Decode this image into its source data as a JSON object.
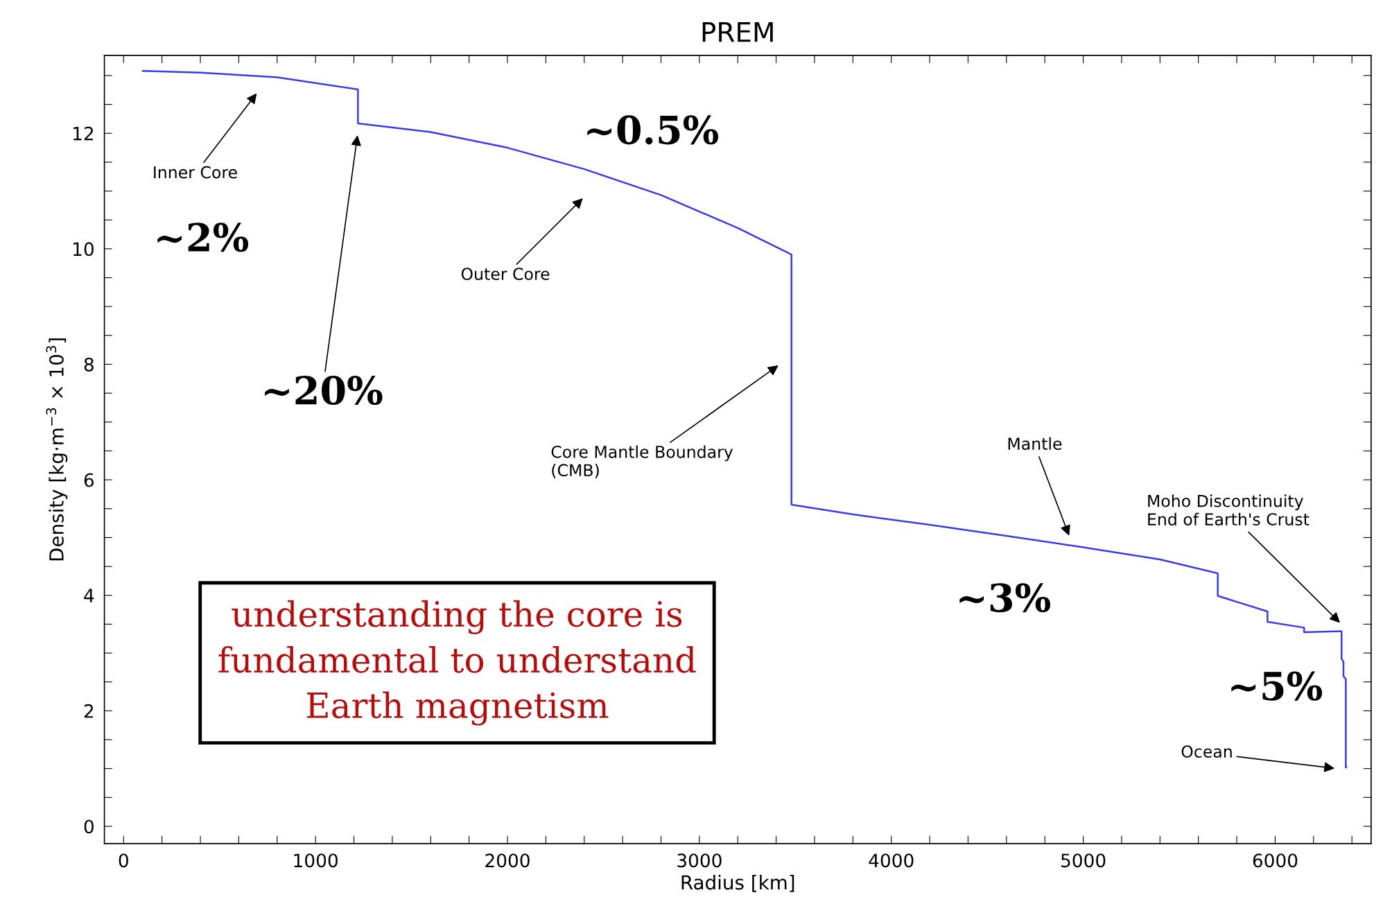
{
  "chart_data": {
    "type": "line",
    "title": "PREM",
    "xlabel": "Radius [km]",
    "ylabel": "Density [kg·m$^{−3}$ × 10$^{3}$]",
    "x": [
      100,
      400,
      800,
      1221,
      1221,
      1600,
      2000,
      2400,
      2800,
      3200,
      3480,
      3480,
      3800,
      4200,
      4600,
      5000,
      5400,
      5701,
      5701,
      5960,
      5960,
      6151,
      6151,
      6346,
      6346,
      6356,
      6356,
      6368,
      6368,
      6371
    ],
    "series": [
      {
        "color": "#3a3ae6",
        "values": [
          13.08,
          13.05,
          12.97,
          12.76,
          12.17,
          12.02,
          11.75,
          11.38,
          10.93,
          10.36,
          9.9,
          5.57,
          5.4,
          5.22,
          5.03,
          4.83,
          4.62,
          4.38,
          3.99,
          3.72,
          3.54,
          3.44,
          3.36,
          3.38,
          2.9,
          2.85,
          2.6,
          2.55,
          1.02,
          1.02
        ]
      }
    ],
    "xlim": [
      -100,
      6500
    ],
    "ylim": [
      -0.3,
      13.35
    ],
    "xticks": [
      0,
      {
        "value": 200,
        "label": null
      },
      {
        "value": 400,
        "label": null
      },
      {
        "value": 600,
        "label": null
      },
      {
        "value": 800,
        "label": null
      },
      1000,
      {
        "value": 1200,
        "label": null
      },
      {
        "value": 1400,
        "label": null
      },
      {
        "value": 1600,
        "label": null
      },
      {
        "value": 1800,
        "label": null
      },
      2000,
      {
        "value": 2200,
        "label": null
      },
      {
        "value": 2400,
        "label": null
      },
      {
        "value": 2600,
        "label": null
      },
      {
        "value": 2800,
        "label": null
      },
      3000,
      {
        "value": 3200,
        "label": null
      },
      {
        "value": 3400,
        "label": null
      },
      {
        "value": 3600,
        "label": null
      },
      {
        "value": 3800,
        "label": null
      },
      4000,
      {
        "value": 4200,
        "label": null
      },
      {
        "value": 4400,
        "label": null
      },
      {
        "value": 4600,
        "label": null
      },
      {
        "value": 4800,
        "label": null
      },
      5000,
      {
        "value": 5200,
        "label": null
      },
      {
        "value": 5400,
        "label": null
      },
      {
        "value": 5600,
        "label": null
      },
      {
        "value": 5800,
        "label": null
      },
      6000,
      {
        "value": 6200,
        "label": null
      },
      {
        "value": 6400,
        "label": null
      }
    ],
    "yticks": [
      0,
      {
        "value": 0.5,
        "label": null
      },
      {
        "value": 1,
        "label": null
      },
      {
        "value": 1.5,
        "label": null
      },
      2,
      {
        "value": 2.5,
        "label": null
      },
      {
        "value": 3,
        "label": null
      },
      {
        "value": 3.5,
        "label": null
      },
      4,
      {
        "value": 4.5,
        "label": null
      },
      {
        "value": 5,
        "label": null
      },
      {
        "value": 5.5,
        "label": null
      },
      6,
      {
        "value": 6.5,
        "label": null
      },
      {
        "value": 7,
        "label": null
      },
      {
        "value": 7.5,
        "label": null
      },
      8,
      {
        "value": 8.5,
        "label": null
      },
      {
        "value": 9,
        "label": null
      },
      {
        "value": 9.5,
        "label": null
      },
      10,
      {
        "value": 10.5,
        "label": null
      },
      {
        "value": 11,
        "label": null
      },
      {
        "value": 11.5,
        "label": null
      },
      12,
      {
        "value": 12.5,
        "label": null
      },
      {
        "value": 13,
        "label": null
      }
    ],
    "grid": false,
    "marker": "none",
    "line_style": "solid",
    "annotations": [
      "Inner Core",
      "~20%",
      "Outer Core",
      "Core Mantle Boundary\n(CMB)",
      "Mantle",
      "Moho Discontinuity\nEnd of Earth's Crust",
      "Ocean",
      "~2%",
      "~0.5%",
      "~3%",
      "~5%",
      "understanding the core is\nfundamental to understand\nEarth magnetism"
    ]
  }
}
